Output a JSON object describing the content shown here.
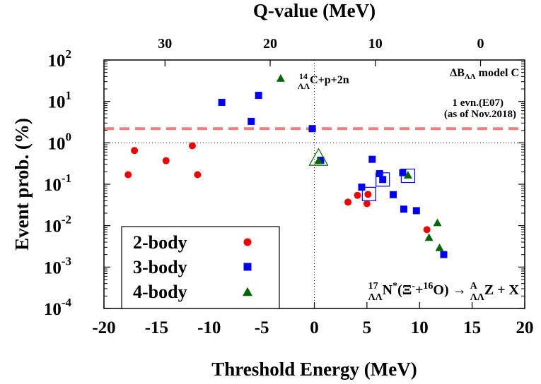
{
  "chart_data": {
    "type": "scatter",
    "xlabel": "Threshold Energy (MeV)",
    "ylabel": "Event prob. (%)",
    "top_xlabel": "Q-value (MeV)",
    "xlim": [
      -20,
      20
    ],
    "ylim": [
      0.0001,
      100
    ],
    "y_scale": "log",
    "x_ticks": [
      "-20",
      "-15",
      "-10",
      "-5",
      "0",
      "5",
      "10",
      "15",
      "20"
    ],
    "y_ticks": [
      {
        "base": "10",
        "exp": "-4",
        "value": 0.0001
      },
      {
        "base": "10",
        "exp": "-3",
        "value": 0.001
      },
      {
        "base": "10",
        "exp": "-2",
        "value": 0.01
      },
      {
        "base": "10",
        "exp": "-1",
        "value": 0.1
      },
      {
        "base": "10",
        "exp": "0",
        "value": 1
      },
      {
        "base": "10",
        "exp": "1",
        "value": 10
      },
      {
        "base": "10",
        "exp": "2",
        "value": 100
      }
    ],
    "top_ticks": [
      {
        "label": "30",
        "q": 30
      },
      {
        "label": "20",
        "q": 20
      },
      {
        "label": "10",
        "q": 10
      },
      {
        "label": "0",
        "q": 0
      }
    ],
    "q_offset": 15.8,
    "series": [
      {
        "name": "2-body",
        "marker": "circle",
        "color": "#ee0000",
        "points": [
          {
            "x": -17.7,
            "y": 0.17
          },
          {
            "x": -17.1,
            "y": 0.65
          },
          {
            "x": -14.1,
            "y": 0.37
          },
          {
            "x": -11.6,
            "y": 0.85
          },
          {
            "x": -11.1,
            "y": 0.17
          },
          {
            "x": 3.2,
            "y": 0.037
          },
          {
            "x": 4.1,
            "y": 0.054
          },
          {
            "x": 5.0,
            "y": 0.034
          },
          {
            "x": 5.1,
            "y": 0.057
          },
          {
            "x": 10.7,
            "y": 0.008
          }
        ]
      },
      {
        "name": "3-body",
        "marker": "square",
        "color": "#0000ee",
        "points": [
          {
            "x": -8.8,
            "y": 9.5
          },
          {
            "x": -6.0,
            "y": 3.3
          },
          {
            "x": -5.3,
            "y": 14.0
          },
          {
            "x": -0.2,
            "y": 2.2
          },
          {
            "x": 0.6,
            "y": 0.38
          },
          {
            "x": 4.5,
            "y": 0.085
          },
          {
            "x": 5.5,
            "y": 0.4
          },
          {
            "x": 6.2,
            "y": 0.18
          },
          {
            "x": 6.5,
            "y": 0.13
          },
          {
            "x": 7.5,
            "y": 0.056
          },
          {
            "x": 8.4,
            "y": 0.19
          },
          {
            "x": 8.5,
            "y": 0.025
          },
          {
            "x": 9.7,
            "y": 0.023
          },
          {
            "x": 12.3,
            "y": 0.002
          }
        ]
      },
      {
        "name": "4-body",
        "marker": "triangle",
        "color": "#006400",
        "points": [
          {
            "x": -3.2,
            "y": 37.0
          },
          {
            "x": 0.4,
            "y": 0.38
          },
          {
            "x": 8.9,
            "y": 0.17
          },
          {
            "x": 11.7,
            "y": 0.012
          },
          {
            "x": 10.9,
            "y": 0.0053
          },
          {
            "x": 11.9,
            "y": 0.003
          }
        ]
      }
    ],
    "highlighted": [
      {
        "marker": "square",
        "x": 5.2,
        "y": 0.058
      },
      {
        "marker": "square",
        "x": 6.5,
        "y": 0.13
      },
      {
        "marker": "square",
        "x": 8.9,
        "y": 0.16
      },
      {
        "marker": "triangle",
        "x": 0.4,
        "y": 0.42
      }
    ],
    "reference_lines": [
      {
        "type": "horizontal",
        "y": 2.2,
        "color": "#f08080",
        "style": "dashed",
        "label_lines": [
          "1 evn.(E07)",
          "(as of Nov.2018)"
        ]
      },
      {
        "type": "horizontal",
        "y": 1,
        "color": "#000000",
        "style": "dotted"
      },
      {
        "type": "vertical",
        "x": 0,
        "color": "#000000",
        "style": "dotted"
      }
    ],
    "annotations": {
      "model": {
        "pre": "ΔB",
        "sub": "ΛΛ",
        "post": " model C"
      },
      "label_4body": {
        "pre_sup": "14",
        "pre_sub": "ΛΛ",
        "text": "C+p+2n"
      },
      "reaction": {
        "pre_sup": "17",
        "pre_sub": "ΛΛ",
        "n": "N",
        "star": "*",
        "open": "(Ξ",
        "minus": "-",
        "plus": "+",
        "o_sup": "16",
        "o_rest": "O) → ",
        "z_sup": "A",
        "z_sub": "ΛΛ",
        "z_rest": "Z + X"
      }
    },
    "legend": {
      "placement": "bottom-left",
      "entries": [
        "2-body",
        "3-body",
        "4-body"
      ]
    }
  }
}
